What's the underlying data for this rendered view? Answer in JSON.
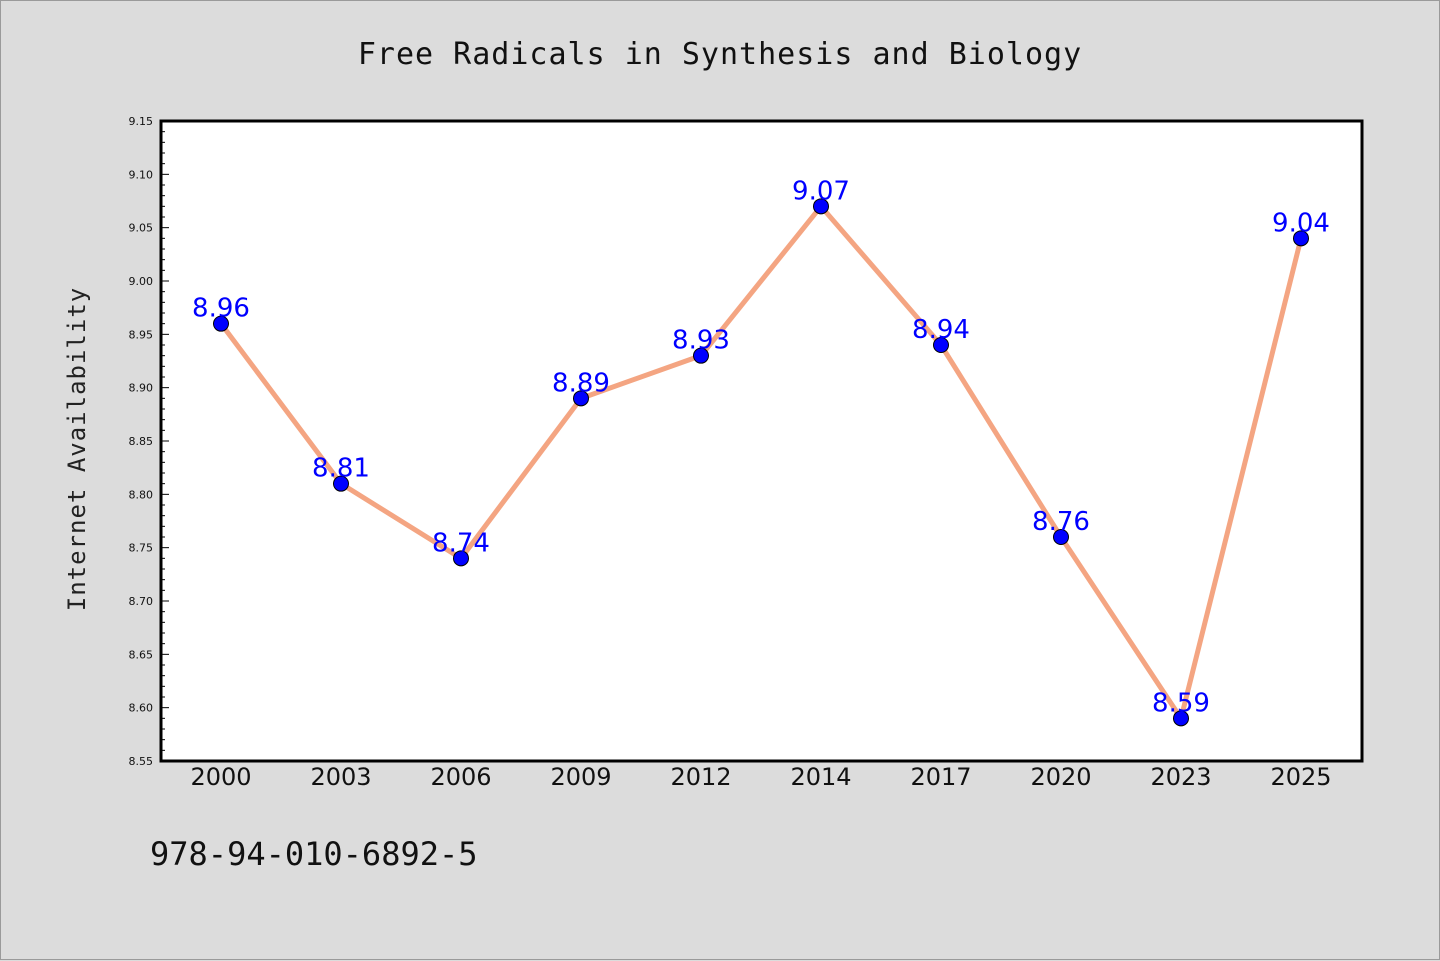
{
  "chart_data": {
    "type": "line",
    "title": "Free Radicals in Synthesis and Biology",
    "xlabel": "",
    "ylabel": "Internet Availability",
    "categories": [
      "2000",
      "2003",
      "2006",
      "2009",
      "2012",
      "2014",
      "2017",
      "2020",
      "2023",
      "2025"
    ],
    "series": [
      {
        "values": [
          8.96,
          8.81,
          8.74,
          8.89,
          8.93,
          9.07,
          8.94,
          8.76,
          8.59,
          9.04
        ]
      }
    ],
    "data_labels": [
      "8.96",
      "8.81",
      "8.74",
      "8.89",
      "8.93",
      "9.07",
      "8.94",
      "8.76",
      "8.59",
      "9.04"
    ],
    "ylim": [
      8.55,
      9.15
    ],
    "yticks": [
      "8.55",
      "8.60",
      "8.65",
      "8.70",
      "8.75",
      "8.80",
      "8.85",
      "8.90",
      "8.95",
      "9.00",
      "9.05",
      "9.10",
      "9.15"
    ],
    "grid": false,
    "legend": "none",
    "colors": {
      "line": "#f4a582",
      "marker": "#0000ff",
      "label": "#0000ff",
      "plot_background": "#ffffff",
      "figure_background": "#dcdcdc"
    }
  },
  "footer": {
    "isbn": "978-94-010-6892-5"
  }
}
